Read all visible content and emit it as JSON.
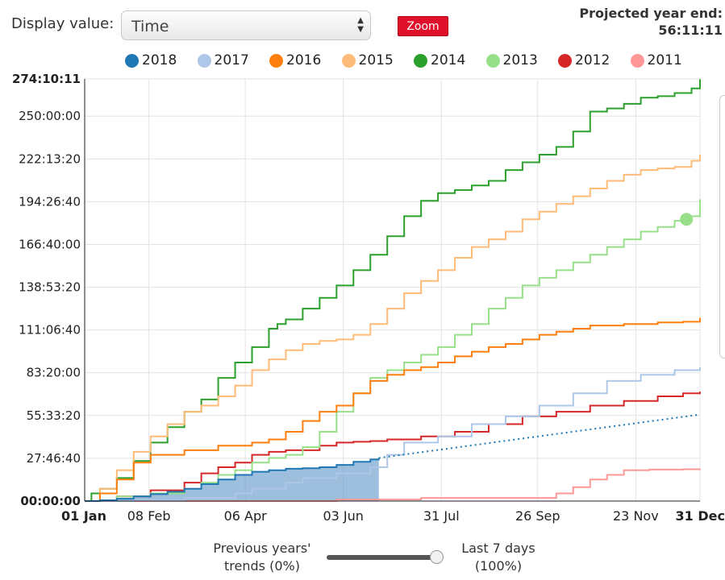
{
  "controls": {
    "display_label": "Display value:",
    "display_value": "Time",
    "zoom_label": "Zoom",
    "projected_label": "Projected year end:",
    "projected_value": "56:11:11"
  },
  "slider": {
    "left_line1": "Previous years'",
    "left_line2": "trends (0%)",
    "right_line1": "Last 7 days",
    "right_line2": "(100%)",
    "value": 1.0
  },
  "icons": {
    "select": "updown-arrows-icon"
  },
  "chart_data": {
    "type": "line",
    "title": "",
    "xlabel": "",
    "ylabel": "",
    "ylim": [
      0,
      274.17
    ],
    "ytick_values": [
      0,
      27.78,
      55.56,
      83.33,
      111.11,
      138.89,
      166.67,
      194.44,
      222.22,
      250,
      274.17
    ],
    "yticks": [
      "00:00:00",
      "27:46:40",
      "55:33:20",
      "83:20:00",
      "111:06:40",
      "138:53:20",
      "166:40:00",
      "194:26:40",
      "222:13:20",
      "250:00:00",
      "274:10:11"
    ],
    "ytick_bold": [
      true,
      false,
      false,
      false,
      false,
      false,
      false,
      false,
      false,
      false,
      true
    ],
    "xlim": [
      1,
      365
    ],
    "xtick_values": [
      1,
      39,
      96,
      154,
      212,
      269,
      327,
      365
    ],
    "xticks": [
      "01 Jan",
      "08 Feb",
      "06 Apr",
      "03 Jun",
      "31 Jul",
      "26 Sep",
      "23 Nov",
      "31 Dec"
    ],
    "xtick_bold": [
      true,
      false,
      false,
      false,
      false,
      false,
      false,
      true
    ],
    "grid": true,
    "legend_position": "top",
    "series": [
      {
        "name": "2018",
        "color": "#1f77b4",
        "filled": true,
        "x": [
          1,
          10,
          20,
          30,
          40,
          50,
          60,
          70,
          80,
          90,
          100,
          110,
          120,
          130,
          140,
          150,
          160,
          170,
          175
        ],
        "y": [
          0,
          0.5,
          1.5,
          3,
          4.5,
          6,
          8,
          11,
          14,
          17,
          19,
          20,
          21,
          21.3,
          22,
          23.5,
          25.5,
          27,
          28
        ]
      },
      {
        "name": "2018 projection",
        "color": "#1f77b4",
        "dotted": true,
        "x": [
          175,
          365
        ],
        "y": [
          28,
          56.2
        ]
      },
      {
        "name": "2017",
        "color": "#aec7e8",
        "x": [
          1,
          30,
          60,
          90,
          100,
          120,
          130,
          150,
          170,
          180,
          190,
          210,
          230,
          250,
          270,
          290,
          310,
          330,
          350,
          365
        ],
        "y": [
          0,
          0.5,
          2,
          5,
          8,
          12,
          15,
          18,
          22,
          30,
          38,
          42,
          50,
          55,
          62,
          70,
          78,
          82,
          85,
          87
        ]
      },
      {
        "name": "2016",
        "color": "#ff7f0e",
        "x": [
          1,
          10,
          20,
          30,
          40,
          60,
          80,
          100,
          110,
          120,
          130,
          140,
          150,
          160,
          170,
          180,
          190,
          200,
          210,
          220,
          230,
          240,
          250,
          260,
          270,
          280,
          290,
          300,
          320,
          340,
          355,
          365
        ],
        "y": [
          0,
          5,
          14,
          25,
          30,
          33,
          36,
          38,
          40,
          45,
          52,
          58,
          62,
          70,
          78,
          82,
          85,
          87,
          90,
          94,
          97,
          100,
          102,
          105,
          108,
          110,
          112,
          114,
          115,
          116,
          116.5,
          119
        ]
      },
      {
        "name": "2015",
        "color": "#ffbb78",
        "x": [
          1,
          10,
          20,
          30,
          40,
          50,
          60,
          70,
          80,
          90,
          100,
          110,
          120,
          130,
          140,
          150,
          160,
          170,
          180,
          190,
          200,
          210,
          220,
          230,
          240,
          250,
          260,
          270,
          280,
          290,
          300,
          310,
          320,
          330,
          340,
          350,
          360,
          365
        ],
        "y": [
          0,
          8,
          20,
          32,
          42,
          50,
          58,
          62,
          68,
          75,
          85,
          92,
          98,
          102,
          104,
          105,
          108,
          115,
          125,
          135,
          143,
          150,
          158,
          165,
          170,
          175,
          183,
          188,
          193,
          198,
          203,
          208,
          212,
          215,
          216,
          217,
          221,
          225
        ]
      },
      {
        "name": "2014",
        "color": "#2ca02c",
        "x": [
          1,
          5,
          10,
          20,
          30,
          40,
          50,
          60,
          70,
          80,
          90,
          100,
          110,
          115,
          120,
          130,
          140,
          150,
          160,
          170,
          180,
          190,
          200,
          210,
          220,
          230,
          240,
          250,
          260,
          270,
          280,
          290,
          300,
          310,
          320,
          330,
          340,
          350,
          360,
          365
        ],
        "y": [
          0,
          5,
          8,
          15,
          26,
          38,
          48,
          58,
          66,
          80,
          90,
          100,
          112,
          115,
          118,
          125,
          132,
          140,
          150,
          160,
          172,
          185,
          195,
          200,
          202,
          205,
          208,
          215,
          220,
          225,
          230,
          240,
          253,
          255,
          258,
          262,
          263,
          265,
          268,
          274
        ]
      },
      {
        "name": "2013",
        "color": "#98df8a",
        "x": [
          1,
          20,
          40,
          60,
          70,
          80,
          90,
          100,
          110,
          120,
          130,
          140,
          150,
          160,
          170,
          180,
          190,
          200,
          210,
          220,
          230,
          240,
          250,
          260,
          270,
          280,
          290,
          300,
          310,
          320,
          330,
          340,
          350,
          360,
          365
        ],
        "y": [
          0,
          3,
          5,
          8,
          12,
          17,
          20,
          25,
          28,
          30,
          35,
          45,
          58,
          70,
          80,
          85,
          90,
          95,
          100,
          108,
          115,
          125,
          132,
          140,
          145,
          150,
          155,
          160,
          165,
          170,
          175,
          178,
          182,
          185,
          196
        ]
      },
      {
        "name": "2012",
        "color": "#d62728",
        "x": [
          1,
          20,
          40,
          60,
          70,
          80,
          90,
          100,
          110,
          120,
          140,
          150,
          160,
          170,
          180,
          200,
          220,
          240,
          260,
          280,
          300,
          320,
          340,
          355,
          365
        ],
        "y": [
          0,
          3,
          7,
          12,
          18,
          22,
          25,
          30,
          32,
          33,
          36,
          38,
          38.5,
          39,
          40,
          42,
          45,
          50,
          55,
          58,
          62,
          65,
          68,
          70,
          71
        ]
      },
      {
        "name": "2011",
        "color": "#ff9896",
        "x": [
          1,
          100,
          150,
          200,
          265,
          280,
          290,
          300,
          310,
          320,
          335,
          355,
          365
        ],
        "y": [
          0,
          0,
          1,
          2,
          2,
          5,
          9,
          14,
          17,
          20,
          20.5,
          20.7,
          21
        ]
      }
    ],
    "marker": {
      "series": "2013",
      "x": 357,
      "y": 183
    }
  }
}
